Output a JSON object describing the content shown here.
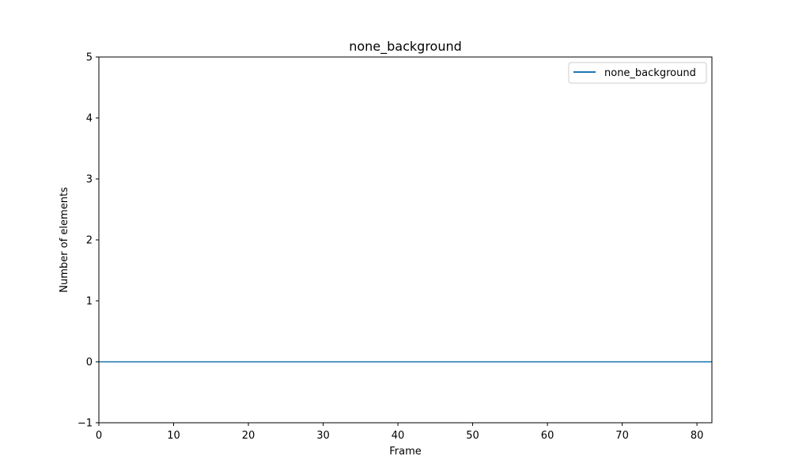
{
  "chart_data": {
    "type": "line",
    "title": "none_background",
    "xlabel": "Frame",
    "ylabel": "Number of elements",
    "xlim": [
      0,
      82
    ],
    "ylim": [
      -1,
      5
    ],
    "xticks": [
      0,
      10,
      20,
      30,
      40,
      50,
      60,
      70,
      80
    ],
    "xtick_labels": [
      "0",
      "10",
      "20",
      "30",
      "40",
      "50",
      "60",
      "70",
      "80"
    ],
    "yticks": [
      -1,
      0,
      1,
      2,
      3,
      4,
      5
    ],
    "ytick_labels": [
      "−1",
      "0",
      "1",
      "2",
      "3",
      "4",
      "5"
    ],
    "grid": false,
    "legend_position": "top-right",
    "series": [
      {
        "name": "none_background",
        "color": "#1f77b4",
        "x": [
          0,
          82
        ],
        "y": [
          0,
          0
        ]
      }
    ]
  }
}
